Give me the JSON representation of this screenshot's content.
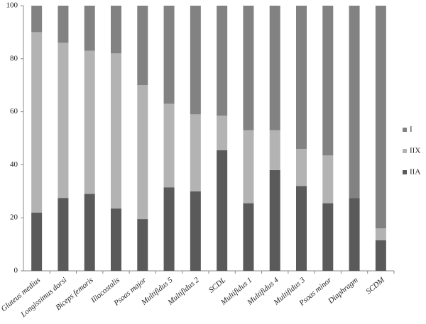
{
  "chart_data": {
    "type": "stacked_bar",
    "categories": [
      "Gluteus medius",
      "Longissimus dorsi",
      "Biceps femoris",
      "Iliocostalis",
      "Psoas major",
      "Multifidus 5",
      "Multifidus 2",
      "SCDL",
      "Multifidus 1",
      "Multifidus 4",
      "Multifidus 3",
      "Psoas minor",
      "Diaphragm",
      "SCDM"
    ],
    "series": [
      {
        "name": "IIA",
        "color": "#5a5a5a",
        "values": [
          22,
          27.5,
          29,
          23.5,
          19.5,
          31.5,
          30,
          45.5,
          25.5,
          38,
          32,
          25.5,
          27.5,
          11.5
        ]
      },
      {
        "name": "IIX",
        "color": "#b3b3b3",
        "values": [
          68,
          58.5,
          54,
          58.5,
          50.5,
          31.5,
          29,
          13,
          27.5,
          15,
          14,
          18,
          0,
          4.5
        ]
      },
      {
        "name": "I",
        "color": "#828282",
        "values": [
          10,
          14,
          17,
          18,
          30,
          37,
          41,
          41.5,
          47,
          47,
          54,
          56.5,
          72.5,
          84
        ]
      }
    ],
    "ylim": [
      0,
      100
    ],
    "yticks": [
      0,
      20,
      40,
      60,
      80,
      100
    ],
    "legend": "right"
  }
}
